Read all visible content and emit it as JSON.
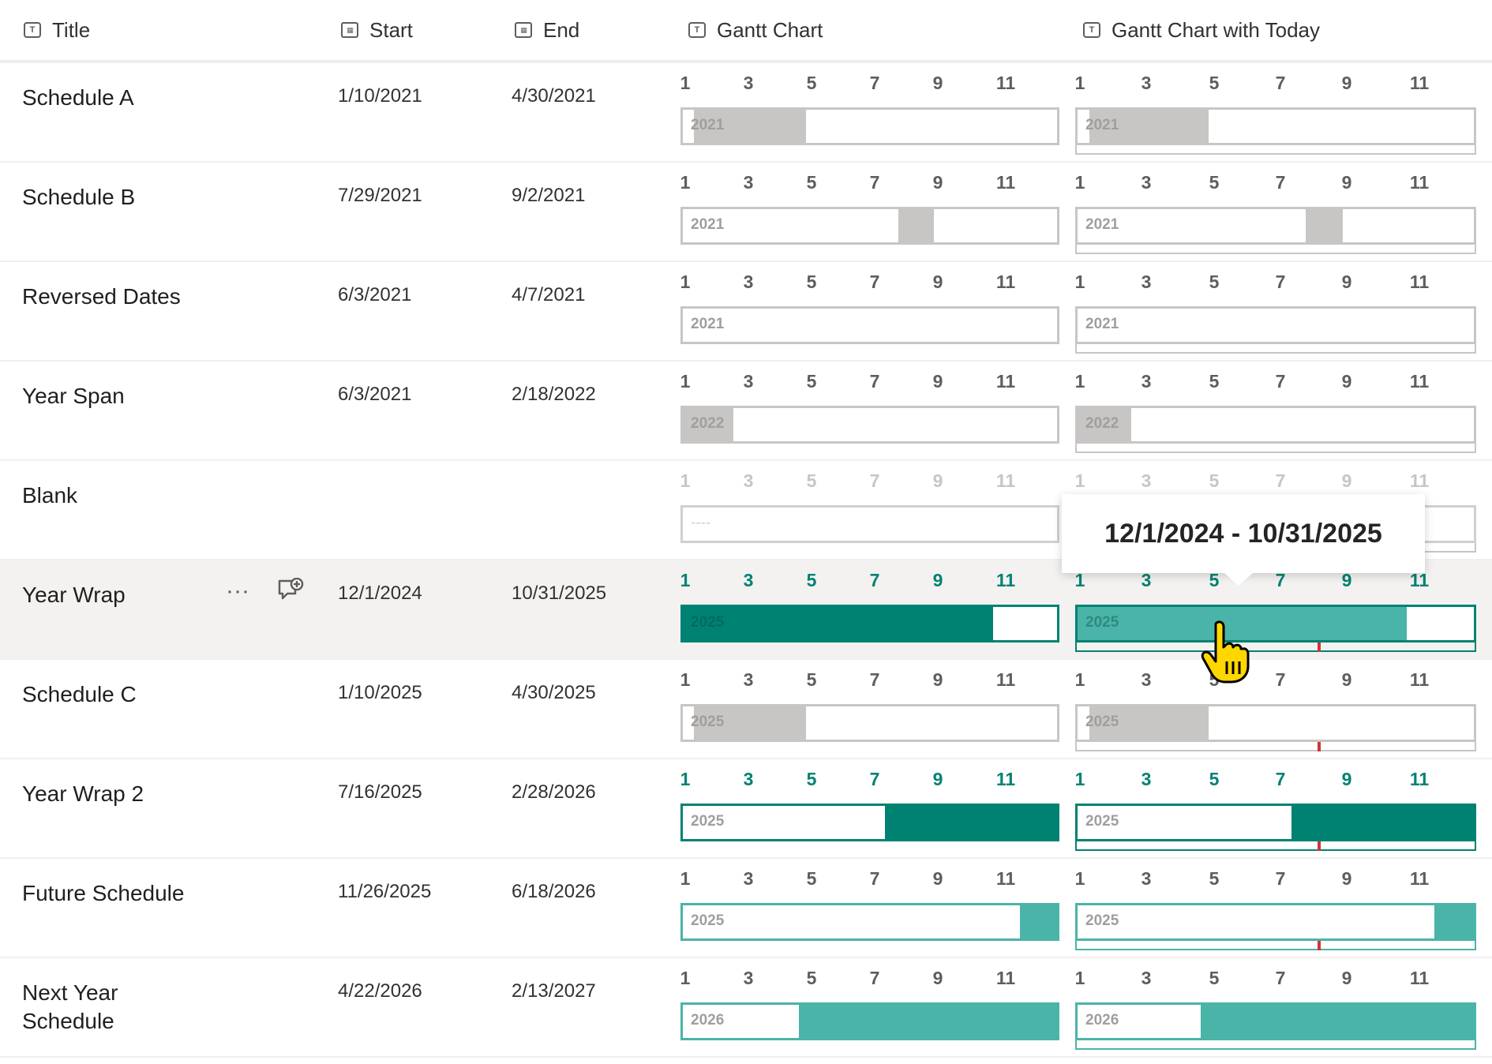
{
  "columns": {
    "title": "Title",
    "start": "Start",
    "end": "End",
    "gantt": "Gantt Chart",
    "gantt_today": "Gantt Chart with Today"
  },
  "month_ticks": [
    "1",
    "3",
    "5",
    "7",
    "9",
    "11"
  ],
  "tooltip": "12/1/2024 - 10/31/2025",
  "colors": {
    "grey_fill": "#c8c6c4",
    "teal_dark": "#008272",
    "teal_light": "#4ab4a8",
    "today_marker": "#d13438",
    "hover_bg": "#f3f2f1"
  },
  "rows": [
    {
      "title": "Schedule A",
      "start": "1/10/2021",
      "end": "4/30/2021",
      "year": "2021",
      "state": "past",
      "fill_from": 0.03,
      "fill_to": 0.33
    },
    {
      "title": "Schedule B",
      "start": "7/29/2021",
      "end": "9/2/2021",
      "year": "2021",
      "state": "past",
      "fill_from": 0.575,
      "fill_to": 0.67
    },
    {
      "title": "Reversed Dates",
      "start": "6/3/2021",
      "end": "4/7/2021",
      "year": "2021",
      "state": "past",
      "fill_from": 0,
      "fill_to": 0
    },
    {
      "title": "Year Span",
      "start": "6/3/2021",
      "end": "2/18/2022",
      "year": "2022",
      "state": "past",
      "fill_from": 0,
      "fill_to": 0.135
    },
    {
      "title": "Blank",
      "start": "",
      "end": "",
      "year": "----",
      "state": "blank",
      "fill_from": 0,
      "fill_to": 0
    },
    {
      "title": "Year Wrap",
      "start": "12/1/2024",
      "end": "10/31/2025",
      "year": "2025",
      "state": "current",
      "fill_from": 0,
      "fill_to": 0.83,
      "hover": true
    },
    {
      "title": "Schedule C",
      "start": "1/10/2025",
      "end": "4/30/2025",
      "year": "2025",
      "state": "past",
      "fill_from": 0.03,
      "fill_to": 0.33
    },
    {
      "title": "Year Wrap 2",
      "start": "7/16/2025",
      "end": "2/28/2026",
      "year": "2025",
      "state": "current",
      "fill_from": 0.54,
      "fill_to": 1.0
    },
    {
      "title": "Future Schedule",
      "start": "11/26/2025",
      "end": "6/18/2026",
      "year": "2025",
      "state": "future",
      "fill_from": 0.9,
      "fill_to": 1.0
    },
    {
      "title": "Next Year Schedule",
      "start": "4/22/2026",
      "end": "2/13/2027",
      "year": "2026",
      "state": "future",
      "fill_from": 0.31,
      "fill_to": 1.0
    }
  ]
}
